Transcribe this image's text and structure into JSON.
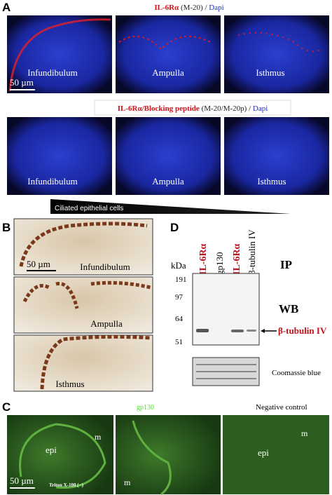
{
  "panel_a": {
    "label": "A",
    "header_1": [
      {
        "text": "IL-6Rα",
        "color": "#d0121b"
      },
      {
        "text": " (M-20) / ",
        "color": "#222"
      },
      {
        "text": "Dapi",
        "color": "#1f2fb8"
      }
    ],
    "row_1": {
      "images": [
        "Infundibulum",
        "Ampulla",
        "Isthmus"
      ],
      "scale": "50 µm"
    },
    "header_2": [
      {
        "text": "IL-6Rα",
        "color": "#d0121b"
      },
      {
        "text": "/Blocking peptide",
        "color": "#d0121b"
      },
      {
        "text": " (M-20/M-20p) / ",
        "color": "#222"
      },
      {
        "text": "Dapi",
        "color": "#1f2fb8"
      }
    ],
    "row_2": {
      "images": [
        "Infundibulum",
        "Ampulla",
        "Isthmus"
      ]
    },
    "gradient_label": "Ciliated epithelial cells"
  },
  "panel_b": {
    "label": "B",
    "scale": "50 µm",
    "images": [
      "Infundibulum",
      "Ampulla",
      "Isthmus"
    ]
  },
  "panel_d": {
    "label": "D",
    "lanes": [
      "IL-6Rα",
      "gp130",
      "IL-6Rα",
      "β-tubulin IV"
    ],
    "ip": "IP",
    "kda": "kDa",
    "markers": [
      "191",
      "97",
      "64",
      "51"
    ],
    "wb": "WB",
    "band": "β-tubulin IV",
    "loading": "Coomassie blue"
  },
  "panel_c": {
    "label": "C",
    "header_left": "gp130",
    "header_right": "Negative control",
    "image_1": {
      "m": "m",
      "epi": "epi",
      "scale": "50 µm",
      "condition": "Triton X-100 (−)"
    },
    "image_2": {
      "m": "m"
    },
    "image_3": {
      "m": "m",
      "epi": "epi"
    }
  }
}
